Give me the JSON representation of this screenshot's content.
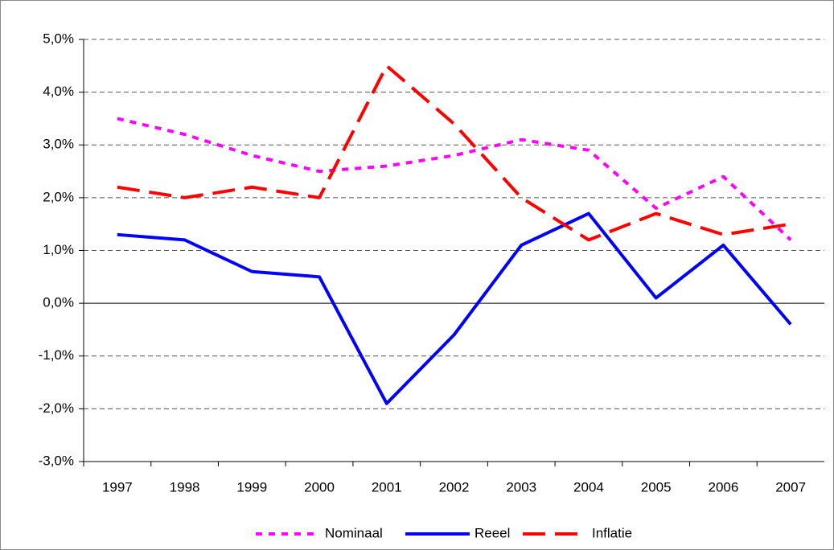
{
  "chart_data": {
    "type": "line",
    "categories": [
      "1997",
      "1998",
      "1999",
      "2000",
      "2001",
      "2002",
      "2003",
      "2004",
      "2005",
      "2006",
      "2007"
    ],
    "series": [
      {
        "name": "Nominaal",
        "color": "#ff00ff",
        "dash": "dotted",
        "values": [
          3.5,
          3.2,
          2.8,
          2.5,
          2.6,
          2.8,
          3.1,
          2.9,
          1.8,
          2.4,
          1.2
        ]
      },
      {
        "name": "Reeel",
        "color": "#0000ff",
        "dash": "solid",
        "values": [
          1.3,
          1.2,
          0.6,
          0.5,
          -1.9,
          -0.6,
          1.1,
          1.7,
          0.1,
          1.1,
          -0.4
        ]
      },
      {
        "name": "Inflatie",
        "color": "#ff0000",
        "dash": "dashed",
        "values": [
          2.2,
          2.0,
          2.2,
          2.0,
          4.5,
          3.4,
          2.0,
          1.2,
          1.7,
          1.3,
          1.5
        ]
      }
    ],
    "ylim": [
      -3,
      5
    ],
    "yticks": [
      {
        "value": -3,
        "label": "-3,0%"
      },
      {
        "value": -2,
        "label": "-2,0%"
      },
      {
        "value": -1,
        "label": "-1,0%"
      },
      {
        "value": 0,
        "label": "0,0%"
      },
      {
        "value": 1,
        "label": "1,0%"
      },
      {
        "value": 2,
        "label": "2,0%"
      },
      {
        "value": 3,
        "label": "3,0%"
      },
      {
        "value": 4,
        "label": "4,0%"
      },
      {
        "value": 5,
        "label": "5,0%"
      }
    ],
    "grid": true,
    "legend": "bottom"
  }
}
